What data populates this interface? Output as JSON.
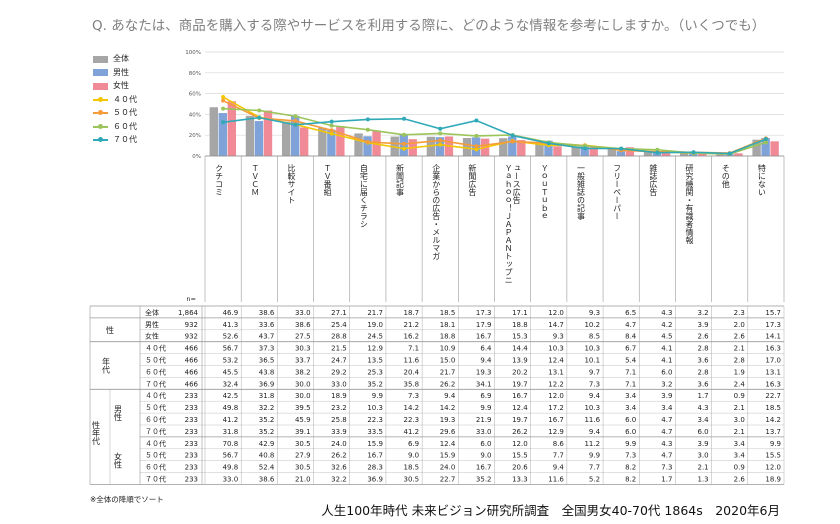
{
  "question": "Q. あなたは、商品を購入する際やサービスを利用する際に、どのような情報を参考にしますか。（いくつでも）",
  "footnote": "※全体の降順でソート",
  "source": "人生100年時代 未来ビジョン研究所調査　全国男女40-70代 1864s　2020年6月",
  "n_label": "n=",
  "colors": {
    "all": "#a6a6a6",
    "male": "#7fa3d8",
    "female": "#f08a96",
    "a40": "#f2c600",
    "a50": "#f59c3a",
    "a60": "#9bc45a",
    "a70": "#2fa9b8",
    "grid": "#d9d9d9",
    "table_line": "#999999"
  },
  "chart_data": {
    "type": "bar",
    "ylim": [
      0,
      100
    ],
    "yticks": [
      "0%",
      "20%",
      "40%",
      "60%",
      "80%",
      "100%"
    ],
    "categories": [
      "クチコミ",
      "ＴＶＣＭ",
      "比較サイト",
      "ＴＶ番組",
      "自宅に届くチラシ",
      "新聞記事",
      "企業からの広告・メルマガ",
      "新聞広告",
      "Ｙａｈｏｏ！ＪＡＰＡＮトップニュース広告",
      "ＹｏｕＴｕｂｅ",
      "一般雑誌の記事",
      "フリーペーパー",
      "雑誌広告",
      "研究機関・有識者情報",
      "その他",
      "特にない"
    ],
    "bar_series": [
      {
        "name": "全体",
        "key": "all",
        "values": [
          46.9,
          38.6,
          33.0,
          27.1,
          21.7,
          18.7,
          18.5,
          17.3,
          17.1,
          12.0,
          9.3,
          6.5,
          4.3,
          3.2,
          2.3,
          15.7
        ]
      },
      {
        "name": "男性",
        "key": "male",
        "values": [
          41.3,
          33.6,
          38.6,
          25.4,
          19.0,
          21.2,
          18.1,
          17.9,
          18.8,
          14.7,
          10.2,
          4.7,
          4.2,
          3.9,
          2.0,
          17.3
        ]
      },
      {
        "name": "女性",
        "key": "female",
        "values": [
          52.6,
          43.7,
          27.5,
          28.8,
          24.5,
          16.2,
          18.8,
          16.7,
          15.3,
          9.3,
          8.5,
          8.4,
          4.5,
          2.6,
          2.6,
          14.1
        ]
      }
    ],
    "line_series": [
      {
        "name": "４０代",
        "key": "a40",
        "values": [
          56.7,
          37.3,
          30.3,
          21.5,
          12.9,
          7.1,
          10.9,
          6.4,
          14.4,
          10.3,
          10.3,
          6.7,
          4.1,
          2.8,
          2.1,
          16.3
        ]
      },
      {
        "name": "５０代",
        "key": "a50",
        "values": [
          53.2,
          36.5,
          33.7,
          24.7,
          13.5,
          11.6,
          15.0,
          9.4,
          13.9,
          12.4,
          10.1,
          5.4,
          4.1,
          3.6,
          2.8,
          17.0
        ]
      },
      {
        "name": "６０代",
        "key": "a60",
        "values": [
          45.5,
          43.8,
          38.2,
          29.2,
          25.3,
          20.4,
          21.7,
          19.3,
          20.2,
          13.1,
          9.7,
          7.1,
          6.0,
          2.8,
          1.9,
          13.1
        ]
      },
      {
        "name": "７０代",
        "key": "a70",
        "values": [
          32.4,
          36.9,
          30.0,
          33.0,
          35.2,
          35.8,
          26.2,
          34.1,
          19.7,
          12.2,
          7.3,
          7.1,
          3.2,
          3.6,
          2.4,
          16.3
        ]
      }
    ],
    "table": {
      "header_rowlabels": [
        "性",
        "年代",
        "性年代"
      ],
      "rows": [
        {
          "g1": "",
          "g2": "",
          "label": "全体",
          "n": "1,864",
          "values": [
            "46.9",
            "38.6",
            "33.0",
            "27.1",
            "21.7",
            "18.7",
            "18.5",
            "17.3",
            "17.1",
            "12.0",
            "9.3",
            "6.5",
            "4.3",
            "3.2",
            "2.3",
            "15.7"
          ]
        },
        {
          "g1": "",
          "g2": "",
          "label": "男性",
          "n": "932",
          "values": [
            "41.3",
            "33.6",
            "38.6",
            "25.4",
            "19.0",
            "21.2",
            "18.1",
            "17.9",
            "18.8",
            "14.7",
            "10.2",
            "4.7",
            "4.2",
            "3.9",
            "2.0",
            "17.3"
          ]
        },
        {
          "g1": "",
          "g2": "",
          "label": "女性",
          "n": "932",
          "values": [
            "52.6",
            "43.7",
            "27.5",
            "28.8",
            "24.5",
            "16.2",
            "18.8",
            "16.7",
            "15.3",
            "9.3",
            "8.5",
            "8.4",
            "4.5",
            "2.6",
            "2.6",
            "14.1"
          ]
        },
        {
          "g1": "",
          "g2": "",
          "label": "４０代",
          "n": "466",
          "values": [
            "56.7",
            "37.3",
            "30.3",
            "21.5",
            "12.9",
            "7.1",
            "10.9",
            "6.4",
            "14.4",
            "10.3",
            "10.3",
            "6.7",
            "4.1",
            "2.8",
            "2.1",
            "16.3"
          ]
        },
        {
          "g1": "",
          "g2": "",
          "label": "５０代",
          "n": "466",
          "values": [
            "53.2",
            "36.5",
            "33.7",
            "24.7",
            "13.5",
            "11.6",
            "15.0",
            "9.4",
            "13.9",
            "12.4",
            "10.1",
            "5.4",
            "4.1",
            "3.6",
            "2.8",
            "17.0"
          ]
        },
        {
          "g1": "",
          "g2": "",
          "label": "６０代",
          "n": "466",
          "values": [
            "45.5",
            "43.8",
            "38.2",
            "29.2",
            "25.3",
            "20.4",
            "21.7",
            "19.3",
            "20.2",
            "13.1",
            "9.7",
            "7.1",
            "6.0",
            "2.8",
            "1.9",
            "13.1"
          ]
        },
        {
          "g1": "",
          "g2": "",
          "label": "７０代",
          "n": "466",
          "values": [
            "32.4",
            "36.9",
            "30.0",
            "33.0",
            "35.2",
            "35.8",
            "26.2",
            "34.1",
            "19.7",
            "12.2",
            "7.3",
            "7.1",
            "3.2",
            "3.6",
            "2.4",
            "16.3"
          ]
        },
        {
          "g1": "",
          "g2": "",
          "label": "４０代",
          "n": "233",
          "values": [
            "42.5",
            "31.8",
            "30.0",
            "18.9",
            "9.9",
            "7.3",
            "9.4",
            "6.9",
            "16.7",
            "12.0",
            "9.4",
            "3.4",
            "3.9",
            "1.7",
            "0.9",
            "22.7"
          ]
        },
        {
          "g1": "",
          "g2": "",
          "label": "５０代",
          "n": "233",
          "values": [
            "49.8",
            "32.2",
            "39.5",
            "23.2",
            "10.3",
            "14.2",
            "14.2",
            "9.9",
            "12.4",
            "17.2",
            "10.3",
            "3.4",
            "3.4",
            "4.3",
            "2.1",
            "18.5"
          ]
        },
        {
          "g1": "",
          "g2": "",
          "label": "６０代",
          "n": "233",
          "values": [
            "41.2",
            "35.2",
            "45.9",
            "25.8",
            "22.3",
            "22.3",
            "19.3",
            "21.9",
            "19.7",
            "16.7",
            "11.6",
            "6.0",
            "4.7",
            "3.4",
            "3.0",
            "14.2"
          ]
        },
        {
          "g1": "",
          "g2": "",
          "label": "７０代",
          "n": "233",
          "values": [
            "31.8",
            "35.2",
            "39.1",
            "33.9",
            "33.5",
            "41.2",
            "29.6",
            "33.0",
            "26.2",
            "12.9",
            "9.4",
            "6.0",
            "4.7",
            "6.0",
            "2.1",
            "13.7"
          ]
        },
        {
          "g1": "",
          "g2": "",
          "label": "４０代",
          "n": "233",
          "values": [
            "70.8",
            "42.9",
            "30.5",
            "24.0",
            "15.9",
            "6.9",
            "12.4",
            "6.0",
            "12.0",
            "8.6",
            "11.2",
            "9.9",
            "4.3",
            "3.9",
            "3.4",
            "9.9"
          ]
        },
        {
          "g1": "",
          "g2": "",
          "label": "５０代",
          "n": "233",
          "values": [
            "56.7",
            "40.8",
            "27.9",
            "26.2",
            "16.7",
            "9.0",
            "15.9",
            "9.0",
            "15.5",
            "7.7",
            "9.9",
            "7.3",
            "4.7",
            "3.0",
            "3.4",
            "15.5"
          ]
        },
        {
          "g1": "",
          "g2": "",
          "label": "６０代",
          "n": "233",
          "values": [
            "49.8",
            "52.4",
            "30.5",
            "32.6",
            "28.3",
            "18.5",
            "24.0",
            "16.7",
            "20.6",
            "9.4",
            "7.7",
            "8.2",
            "7.3",
            "2.1",
            "0.9",
            "12.0"
          ]
        },
        {
          "g1": "",
          "g2": "",
          "label": "７０代",
          "n": "233",
          "values": [
            "33.0",
            "38.6",
            "21.0",
            "32.2",
            "36.9",
            "30.5",
            "22.7",
            "35.2",
            "13.3",
            "11.6",
            "5.2",
            "8.2",
            "1.7",
            "1.3",
            "2.6",
            "18.9"
          ]
        }
      ],
      "group_labels": {
        "sex": "性",
        "age": "年代",
        "sexage": "性年代",
        "male": "男性",
        "female": "女性"
      }
    }
  }
}
